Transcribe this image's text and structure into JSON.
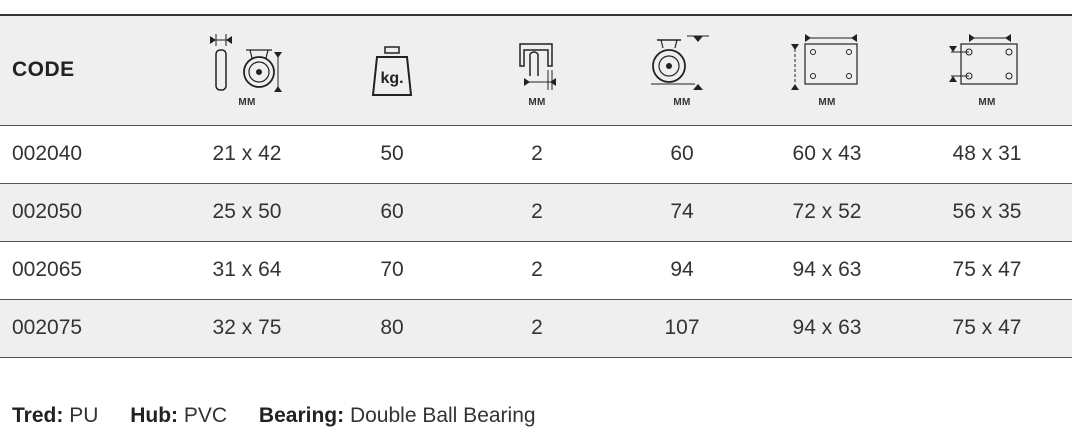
{
  "table": {
    "headers": [
      {
        "type": "text",
        "label": "CODE"
      },
      {
        "type": "icon",
        "icon": "wheel-width-diameter-icon",
        "unit": "MM"
      },
      {
        "type": "icon",
        "icon": "load-weight-icon",
        "unit": ""
      },
      {
        "type": "icon",
        "icon": "bracket-thickness-icon",
        "unit": "MM"
      },
      {
        "type": "icon",
        "icon": "overall-height-icon",
        "unit": "MM"
      },
      {
        "type": "icon",
        "icon": "top-plate-size-icon",
        "unit": "MM"
      },
      {
        "type": "icon",
        "icon": "bolt-hole-spacing-icon",
        "unit": "MM"
      }
    ],
    "weight_icon_text": "kg.",
    "rows": [
      {
        "code": "002040",
        "wheel": "21 x 42",
        "load": "50",
        "bracket": "2",
        "height": "60",
        "plate": "60 x 43",
        "holes": "48 x 31"
      },
      {
        "code": "002050",
        "wheel": "25 x 50",
        "load": "60",
        "bracket": "2",
        "height": "74",
        "plate": "72 x 52",
        "holes": "56 x 35"
      },
      {
        "code": "002065",
        "wheel": "31 x 64",
        "load": "70",
        "bracket": "2",
        "height": "94",
        "plate": "94 x 63",
        "holes": "75 x 47"
      },
      {
        "code": "002075",
        "wheel": "32 x 75",
        "load": "80",
        "bracket": "2",
        "height": "107",
        "plate": "94 x 63",
        "holes": "75 x 47"
      }
    ]
  },
  "footer": {
    "tread_label": "Tred:",
    "tread_value": "PU",
    "hub_label": "Hub:",
    "hub_value": "PVC",
    "bearing_label": "Bearing:",
    "bearing_value": "Double Ball Bearing"
  }
}
